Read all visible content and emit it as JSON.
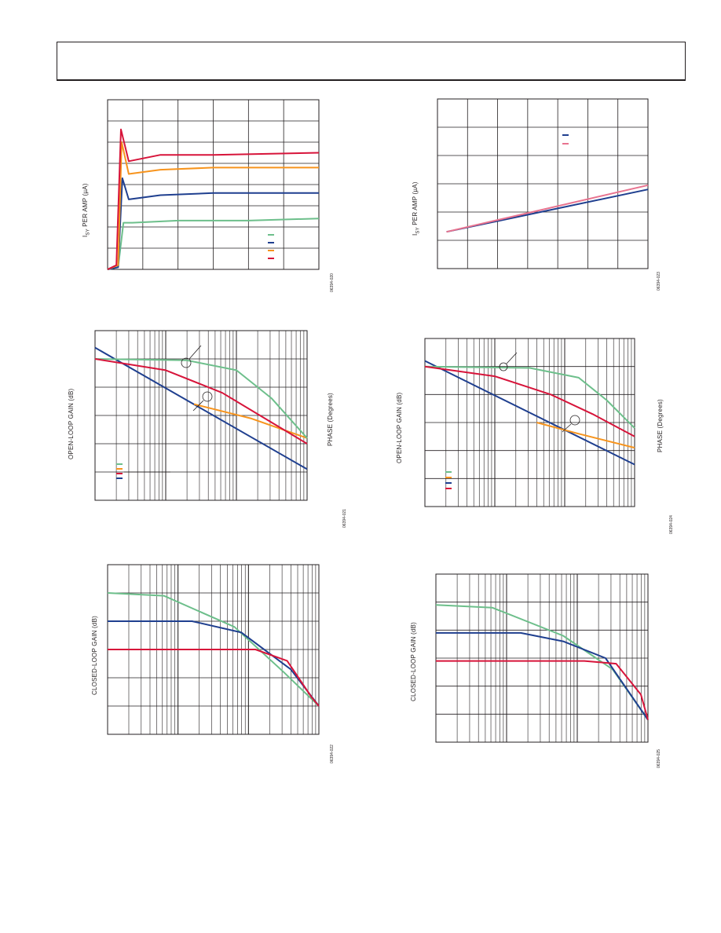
{
  "page": {
    "header": ""
  },
  "charts": [
    {
      "id": "isy-vs-time",
      "ylabel_pre": "I",
      "ylabel_sub": "SY",
      "ylabel_post": " PER AMP (µA)",
      "fignum": "06394-020"
    },
    {
      "id": "isy-vs-temp",
      "ylabel_pre": "I",
      "ylabel_sub": "SY",
      "ylabel_post": " PER AMP (µA)",
      "fignum": "06394-023"
    },
    {
      "id": "olg-left",
      "ylabel": "OPEN-LOOP GAIN (dB)",
      "y2label": "PHASE (Degrees)",
      "fignum": "06394-021"
    },
    {
      "id": "olg-right",
      "ylabel": "OPEN-LOOP GAIN (dB)",
      "y2label": "PHASE (Degrees)",
      "fignum": "06394-024"
    },
    {
      "id": "clg-left",
      "ylabel": "CLOSED-LOOP GAIN (dB)",
      "fignum": "06394-022"
    },
    {
      "id": "clg-right",
      "ylabel": "CLOSED-LOOP GAIN (dB)",
      "fignum": "06394-025"
    }
  ],
  "colors": {
    "green": "#6dbf8b",
    "blue": "#1f3f8f",
    "orange": "#f7941d",
    "red": "#d7143a",
    "pink": "#e8738f",
    "grid": "#231f20"
  },
  "chart_data": [
    {
      "type": "line",
      "xlim": [
        0,
        6
      ],
      "ylim": [
        0,
        8
      ],
      "grid": true,
      "legend_position": "bottom-right",
      "series": [
        {
          "x": [
            0,
            0.3,
            0.45,
            0.7,
            2,
            4,
            6
          ],
          "y": [
            0,
            0.1,
            2.2,
            2.2,
            2.3,
            2.3,
            2.4
          ],
          "color": "green"
        },
        {
          "x": [
            0,
            0.3,
            0.42,
            0.6,
            1.5,
            3,
            6
          ],
          "y": [
            0,
            0.1,
            4.3,
            3.3,
            3.5,
            3.6,
            3.6
          ],
          "color": "blue"
        },
        {
          "x": [
            0,
            0.3,
            0.4,
            0.6,
            1.5,
            3,
            6
          ],
          "y": [
            0,
            0.2,
            6.0,
            4.5,
            4.7,
            4.8,
            4.8
          ],
          "color": "orange"
        },
        {
          "x": [
            0,
            0.25,
            0.38,
            0.6,
            1.5,
            3,
            6
          ],
          "y": [
            0,
            0.2,
            6.6,
            5.1,
            5.4,
            5.4,
            5.5
          ],
          "color": "red"
        }
      ]
    },
    {
      "type": "line",
      "xlim": [
        0,
        7
      ],
      "ylim": [
        0,
        6
      ],
      "grid": true,
      "legend_position": "top-right",
      "series": [
        {
          "x": [
            0.3,
            7
          ],
          "y": [
            1.3,
            2.8
          ],
          "color": "blue"
        },
        {
          "x": [
            0.3,
            7
          ],
          "y": [
            1.3,
            2.95
          ],
          "color": "pink"
        }
      ]
    },
    {
      "type": "line",
      "x_scale": "log",
      "xlim": [
        0,
        3
      ],
      "ylim": [
        0,
        6
      ],
      "grid": true,
      "legend_position": "bottom-left",
      "series": [
        {
          "x": [
            0,
            3
          ],
          "y": [
            5.4,
            1.1
          ],
          "color": "blue"
        },
        {
          "x": [
            1.4,
            2.2,
            3
          ],
          "y": [
            3.4,
            2.9,
            2.2
          ],
          "color": "orange"
        },
        {
          "x": [
            0,
            1.3,
            2.0,
            2.5,
            3
          ],
          "y": [
            5.0,
            4.95,
            4.6,
            3.6,
            2.2
          ],
          "color": "green"
        },
        {
          "x": [
            0,
            1.0,
            1.8,
            2.4,
            3
          ],
          "y": [
            5.0,
            4.6,
            3.8,
            2.9,
            2.0
          ],
          "color": "red"
        }
      ]
    },
    {
      "type": "line",
      "x_scale": "log",
      "xlim": [
        0,
        3
      ],
      "ylim": [
        0,
        6
      ],
      "grid": true,
      "legend_position": "bottom-left",
      "series": [
        {
          "x": [
            0,
            3
          ],
          "y": [
            5.2,
            1.5
          ],
          "color": "blue"
        },
        {
          "x": [
            1.6,
            2.2,
            3
          ],
          "y": [
            3.0,
            2.6,
            2.1
          ],
          "color": "orange"
        },
        {
          "x": [
            0,
            1.5,
            2.2,
            2.6,
            3
          ],
          "y": [
            5.0,
            4.95,
            4.6,
            3.8,
            2.8
          ],
          "color": "green"
        },
        {
          "x": [
            0,
            1.0,
            1.8,
            2.4,
            3
          ],
          "y": [
            5.0,
            4.65,
            4.0,
            3.3,
            2.5
          ],
          "color": "red"
        }
      ]
    },
    {
      "type": "line",
      "x_scale": "log",
      "xlim": [
        0,
        3
      ],
      "ylim": [
        0,
        6
      ],
      "grid": true,
      "legend_position": "top-right",
      "series": [
        {
          "x": [
            0,
            0.8,
            1.8,
            2.5,
            3
          ],
          "y": [
            5.0,
            4.9,
            3.8,
            2.2,
            1.0
          ],
          "color": "green"
        },
        {
          "x": [
            0,
            1.2,
            1.9,
            2.6,
            3
          ],
          "y": [
            4.0,
            4.0,
            3.6,
            2.3,
            1.0
          ],
          "color": "blue"
        },
        {
          "x": [
            0,
            2.1,
            2.55,
            2.9,
            3
          ],
          "y": [
            3.0,
            3.0,
            2.6,
            1.3,
            1.0
          ],
          "color": "red"
        }
      ]
    },
    {
      "type": "line",
      "x_scale": "log",
      "xlim": [
        0,
        3
      ],
      "ylim": [
        0,
        6
      ],
      "grid": true,
      "legend_position": "top-right",
      "series": [
        {
          "x": [
            0,
            0.8,
            1.8,
            2.5,
            3
          ],
          "y": [
            4.9,
            4.8,
            3.8,
            2.6,
            0.8
          ],
          "color": "green"
        },
        {
          "x": [
            0,
            1.2,
            1.8,
            2.4,
            3
          ],
          "y": [
            3.9,
            3.9,
            3.6,
            3.0,
            0.8
          ],
          "color": "blue"
        },
        {
          "x": [
            0,
            2.1,
            2.55,
            2.9,
            3
          ],
          "y": [
            2.9,
            2.9,
            2.8,
            1.7,
            0.8
          ],
          "color": "red"
        }
      ]
    }
  ]
}
